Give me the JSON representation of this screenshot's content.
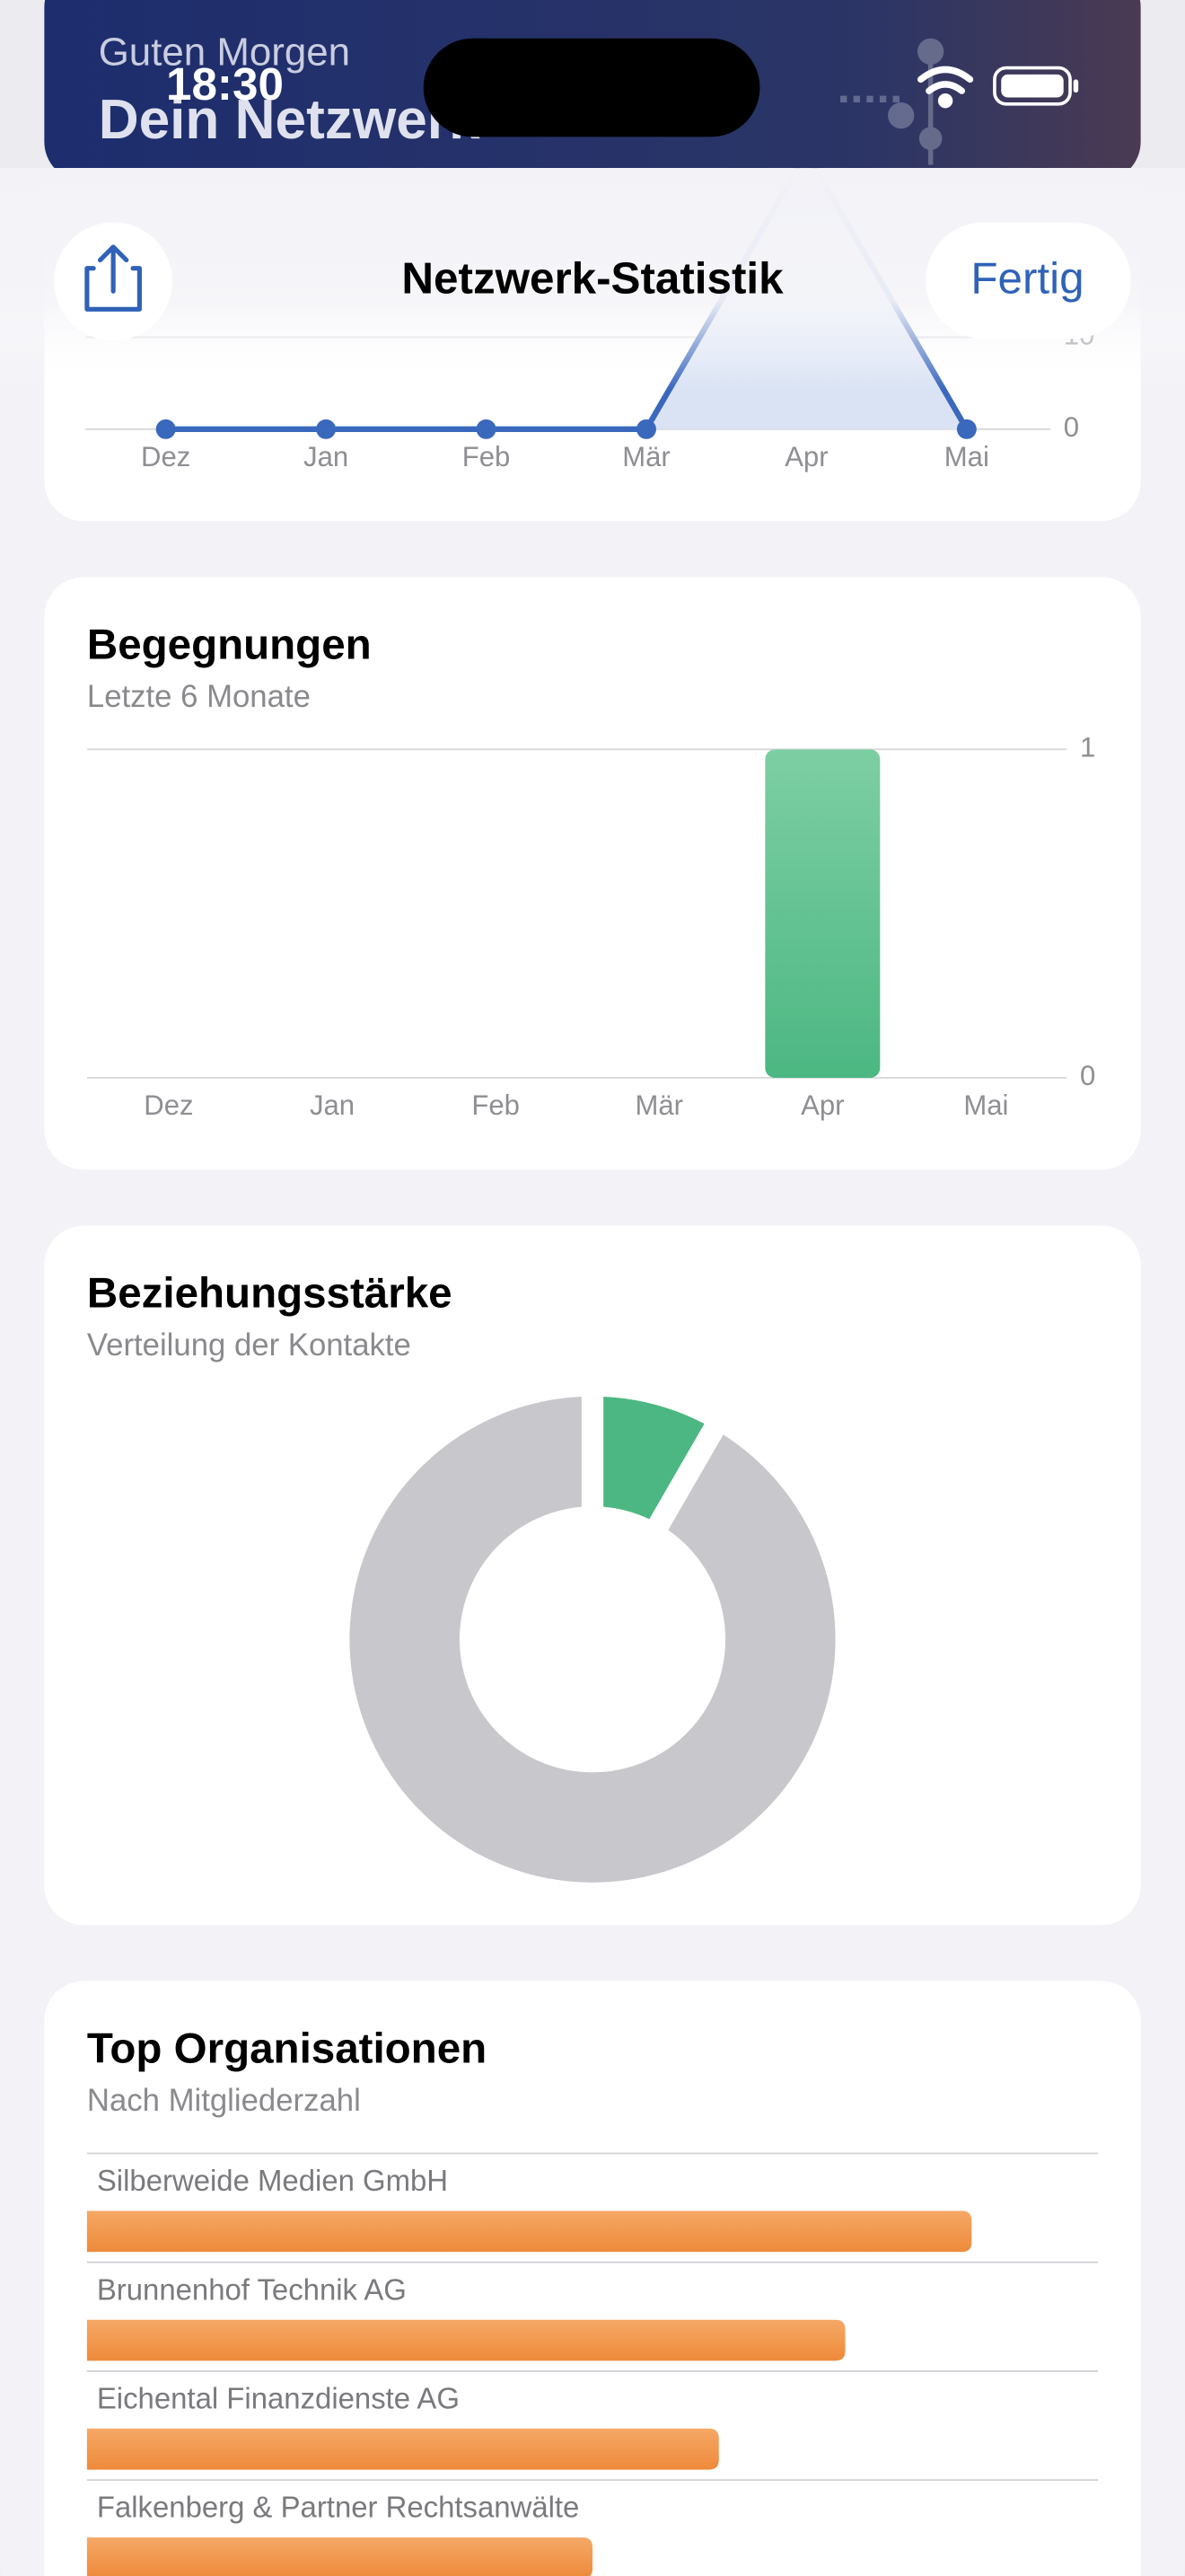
{
  "status_bar": {
    "time": "18:30"
  },
  "background": {
    "greeting": "Guten Morgen",
    "title": "Dein Netzwerk"
  },
  "sheet": {
    "title": "Netzwerk-Statistik",
    "done_button": "Fertig"
  },
  "chart_data": [
    {
      "type": "line",
      "categories": [
        "Dez",
        "Jan",
        "Feb",
        "Mär",
        "Apr",
        "Mai"
      ],
      "values": [
        0,
        0,
        0,
        0,
        30,
        0
      ],
      "color": "#3a68bd",
      "area": true,
      "ylim": [
        0,
        30
      ],
      "yticks": [
        0,
        10
      ],
      "grid": true
    },
    {
      "type": "bar",
      "title": "Begegnungen",
      "subtitle": "Letzte 6 Monate",
      "categories": [
        "Dez",
        "Jan",
        "Feb",
        "Mär",
        "Apr",
        "Mai"
      ],
      "values": [
        0,
        0,
        0,
        0,
        1,
        0
      ],
      "color": "#4cb782",
      "ylim": [
        0,
        1
      ],
      "yticks": [
        0,
        1
      ],
      "grid": true
    },
    {
      "type": "pie",
      "title": "Beziehungsstärke",
      "subtitle": "Verteilung der Kontakte",
      "values": [
        1,
        11
      ],
      "colors": [
        "#4cb782",
        "#c7c7cc"
      ],
      "donut": true
    },
    {
      "type": "barh",
      "title": "Top Organisationen",
      "subtitle": "Nach Mitgliederzahl",
      "categories": [
        "Silberweide Medien GmbH",
        "Brunnenhof Technik AG",
        "Eichental Finanzdienste AG",
        "Falkenberg & Partner Rechtsanwälte"
      ],
      "values": [
        7,
        6,
        5,
        4
      ],
      "xlim": [
        0,
        8
      ],
      "color": "#f0903f"
    }
  ]
}
